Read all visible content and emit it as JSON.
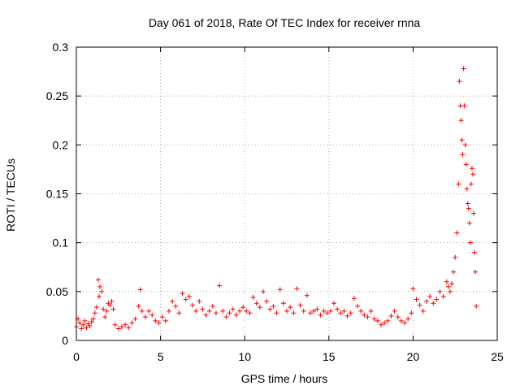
{
  "chart_data": {
    "type": "scatter",
    "title": "Day 061 of 2018, Rate Of TEC Index for receiver rnna",
    "xlabel": "GPS time / hours",
    "ylabel": "ROTI / TECUs",
    "xlim": [
      0,
      25
    ],
    "ylim": [
      0,
      0.3
    ],
    "xticks": [
      0,
      5,
      10,
      15,
      20,
      25
    ],
    "yticks": [
      0,
      0.05,
      0.1,
      0.15,
      0.2,
      0.25,
      0.3
    ],
    "xtick_labels": [
      "0",
      "5",
      "10",
      "15",
      "20",
      "25"
    ],
    "ytick_labels": [
      "0",
      "0.05",
      "0.1",
      "0.15",
      "0.2",
      "0.25",
      "0.3"
    ],
    "grid": true,
    "marker": "+",
    "color": "#ff0000",
    "series": [
      {
        "name": "ROTI",
        "x": [
          0.0,
          0.1,
          0.2,
          0.3,
          0.4,
          0.5,
          0.6,
          0.7,
          0.8,
          0.9,
          1.0,
          1.1,
          1.2,
          1.3,
          1.35,
          1.4,
          1.5,
          1.6,
          1.7,
          1.8,
          1.9,
          2.0,
          2.1,
          2.2,
          2.3,
          2.5,
          2.7,
          2.9,
          3.1,
          3.3,
          3.5,
          3.7,
          3.8,
          3.9,
          4.1,
          4.3,
          4.5,
          4.7,
          4.9,
          5.1,
          5.3,
          5.5,
          5.7,
          5.9,
          6.1,
          6.3,
          6.5,
          6.7,
          6.9,
          7.1,
          7.3,
          7.5,
          7.7,
          7.9,
          8.1,
          8.3,
          8.5,
          8.7,
          8.9,
          9.1,
          9.3,
          9.5,
          9.7,
          9.9,
          10.1,
          10.3,
          10.5,
          10.7,
          10.9,
          11.1,
          11.3,
          11.5,
          11.7,
          11.9,
          12.1,
          12.3,
          12.5,
          12.7,
          12.9,
          13.1,
          13.3,
          13.5,
          13.7,
          13.9,
          14.1,
          14.3,
          14.5,
          14.7,
          14.9,
          15.1,
          15.3,
          15.5,
          15.7,
          15.9,
          16.1,
          16.3,
          16.5,
          16.7,
          16.9,
          17.1,
          17.3,
          17.5,
          17.7,
          17.9,
          18.1,
          18.3,
          18.5,
          18.7,
          18.9,
          19.1,
          19.3,
          19.5,
          19.7,
          19.9,
          20.0,
          20.2,
          20.4,
          20.6,
          20.8,
          21.0,
          21.2,
          21.4,
          21.6,
          21.8,
          22.0,
          22.1,
          22.2,
          22.3,
          22.4,
          22.5,
          22.6,
          22.7,
          22.75,
          22.8,
          22.85,
          22.9,
          22.95,
          23.0,
          23.05,
          23.1,
          23.15,
          23.2,
          23.25,
          23.3,
          23.35,
          23.4,
          23.45,
          23.5,
          23.55,
          23.6,
          23.65,
          23.7,
          23.75
        ],
        "y": [
          0.014,
          0.022,
          0.018,
          0.012,
          0.016,
          0.02,
          0.013,
          0.017,
          0.015,
          0.019,
          0.022,
          0.028,
          0.034,
          0.062,
          0.045,
          0.055,
          0.05,
          0.032,
          0.024,
          0.03,
          0.038,
          0.036,
          0.04,
          0.032,
          0.016,
          0.012,
          0.014,
          0.016,
          0.013,
          0.018,
          0.022,
          0.035,
          0.052,
          0.03,
          0.024,
          0.03,
          0.026,
          0.02,
          0.018,
          0.024,
          0.02,
          0.03,
          0.04,
          0.035,
          0.028,
          0.048,
          0.042,
          0.045,
          0.036,
          0.03,
          0.04,
          0.032,
          0.026,
          0.03,
          0.035,
          0.028,
          0.056,
          0.03,
          0.024,
          0.028,
          0.032,
          0.026,
          0.03,
          0.034,
          0.03,
          0.028,
          0.044,
          0.038,
          0.034,
          0.05,
          0.04,
          0.032,
          0.035,
          0.028,
          0.052,
          0.038,
          0.03,
          0.034,
          0.028,
          0.053,
          0.036,
          0.03,
          0.046,
          0.028,
          0.03,
          0.032,
          0.026,
          0.03,
          0.028,
          0.03,
          0.038,
          0.032,
          0.028,
          0.03,
          0.025,
          0.028,
          0.043,
          0.035,
          0.03,
          0.026,
          0.024,
          0.03,
          0.022,
          0.02,
          0.016,
          0.018,
          0.02,
          0.025,
          0.03,
          0.024,
          0.02,
          0.018,
          0.022,
          0.028,
          0.053,
          0.042,
          0.036,
          0.03,
          0.04,
          0.045,
          0.038,
          0.042,
          0.05,
          0.045,
          0.06,
          0.055,
          0.05,
          0.058,
          0.07,
          0.085,
          0.11,
          0.16,
          0.265,
          0.24,
          0.225,
          0.205,
          0.19,
          0.278,
          0.24,
          0.2,
          0.18,
          0.155,
          0.14,
          0.135,
          0.12,
          0.1,
          0.16,
          0.176,
          0.17,
          0.13,
          0.09,
          0.07,
          0.035
        ]
      }
    ]
  }
}
